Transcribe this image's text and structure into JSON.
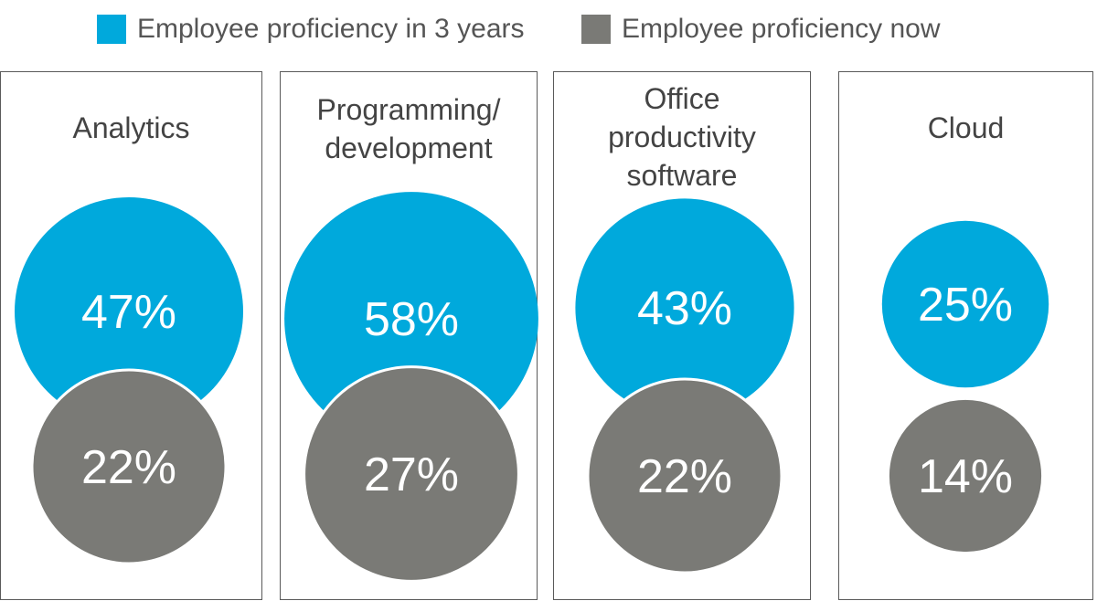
{
  "chart_data": {
    "type": "bubble",
    "series": [
      {
        "name": "Employee proficiency in 3 years",
        "color": "#00a9dc"
      },
      {
        "name": "Employee proficiency now",
        "color": "#7a7a76"
      }
    ],
    "categories": [
      "Analytics",
      "Programming/\ndevelopment",
      "Office\nproductivity\nsoftware",
      "Cloud"
    ],
    "values_3_years": [
      47,
      58,
      43,
      25
    ],
    "values_now": [
      22,
      27,
      22,
      14
    ],
    "labels_3_years": [
      "47%",
      "58%",
      "43%",
      "25%"
    ],
    "labels_now": [
      "22%",
      "27%",
      "22%",
      "14%"
    ],
    "unit": "%"
  }
}
